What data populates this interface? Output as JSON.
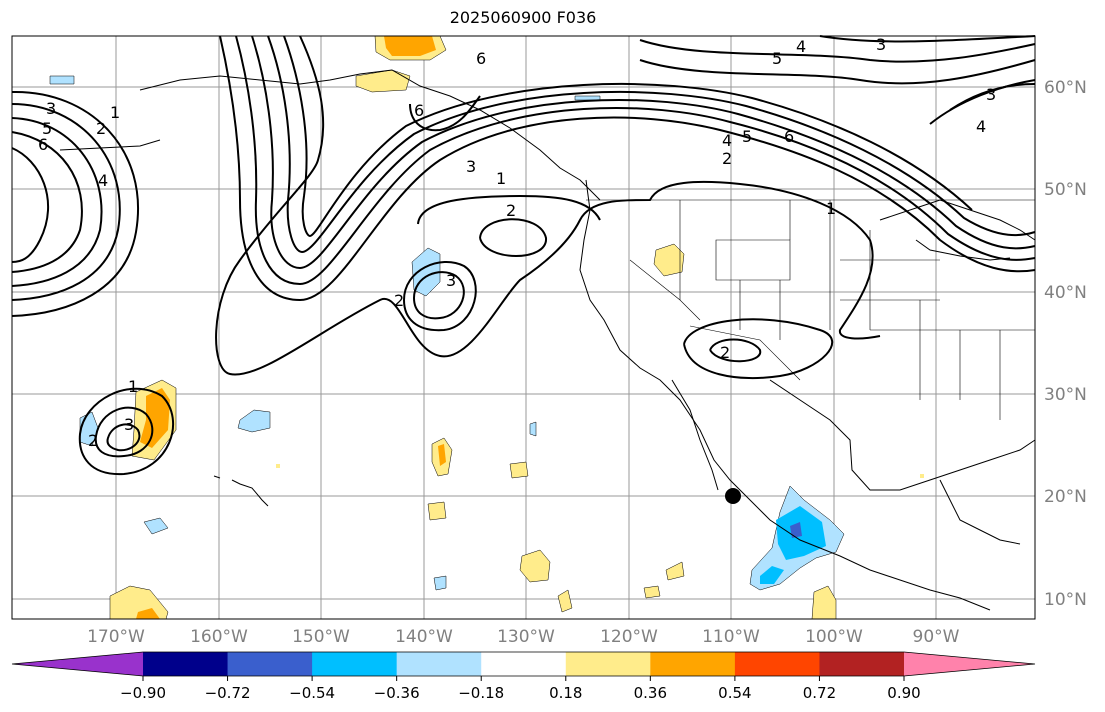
{
  "title": "2025060900 F036",
  "longitude_labels": [
    "170°W",
    "160°W",
    "150°W",
    "140°W",
    "130°W",
    "120°W",
    "110°W",
    "100°W",
    "90°W"
  ],
  "latitude_labels": [
    "60°N",
    "50°N",
    "40°N",
    "30°N",
    "20°N",
    "10°N"
  ],
  "colorbar": {
    "tick_labels": [
      "−0.90",
      "−0.72",
      "−0.54",
      "−0.36",
      "−0.18",
      "0.18",
      "0.36",
      "0.54",
      "0.72",
      "0.90"
    ],
    "colors": [
      "#9932cc",
      "#00008b",
      "#3a5fcd",
      "#00bfff",
      "#b0e2ff",
      "#ffffff",
      "#ffec8b",
      "#ffa500",
      "#ff4500",
      "#b22222",
      "#ff82ab"
    ]
  },
  "contour_labels": [
    "6",
    "5",
    "4",
    "3",
    "2",
    "1"
  ],
  "marker": "black-dot"
}
